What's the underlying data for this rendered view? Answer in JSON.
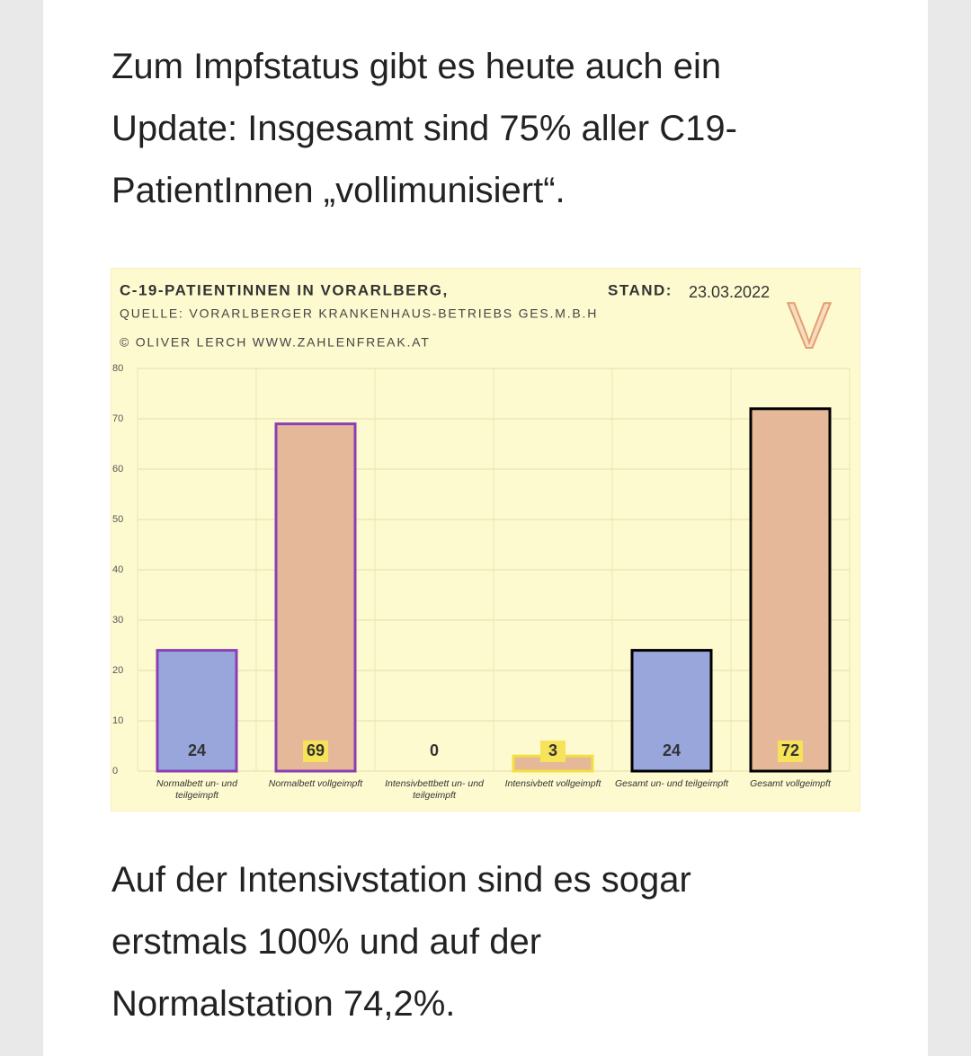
{
  "paragraphs": [
    [
      "Zum Impfstatus gibt es heute auch ein",
      "Update: Insgesamt sind 75% aller C19-",
      "PatientInnen „vollimunisiert“."
    ],
    [
      "Auf der Intensivstation sind es sogar",
      "erstmals 100% und auf der",
      "Normalstation 74,2%."
    ]
  ],
  "chart_data": {
    "type": "bar",
    "title": "C-19-PATIENTINNEN IN VORARLBERG,",
    "stand_label": "STAND:",
    "stand_date": "23.03.2022",
    "source": "QUELLE: VORARLBERGER KRANKENHAUS-BETRIEBS GES.M.B.H",
    "copyright": "© OLIVER LERCH WWW.ZAHLENFREAK.AT",
    "logo": "V",
    "categories": [
      "Normalbett un- und teilgeimpft",
      "Normalbett vollgeimpft",
      "Intensivbettbett un- und teilgeimpft",
      "Intensivbett vollgeimpft",
      "Gesamt un- und teilgeimpft",
      "Gesamt vollgeimpft"
    ],
    "values": [
      24,
      69,
      0,
      3,
      24,
      72
    ],
    "colors": [
      "#98a6dc",
      "#e4b898",
      "#98a6dc",
      "#e4b898",
      "#98a6dc",
      "#e4b898"
    ],
    "edgecolors": [
      "#8a3fb5",
      "#8a3fb5",
      "#8a3fb5",
      "#f2e040",
      "#000000",
      "#000000"
    ],
    "ylim": [
      0,
      80
    ],
    "yticks": [
      0,
      10,
      20,
      30,
      40,
      50,
      60,
      70,
      80
    ],
    "grid": true
  }
}
